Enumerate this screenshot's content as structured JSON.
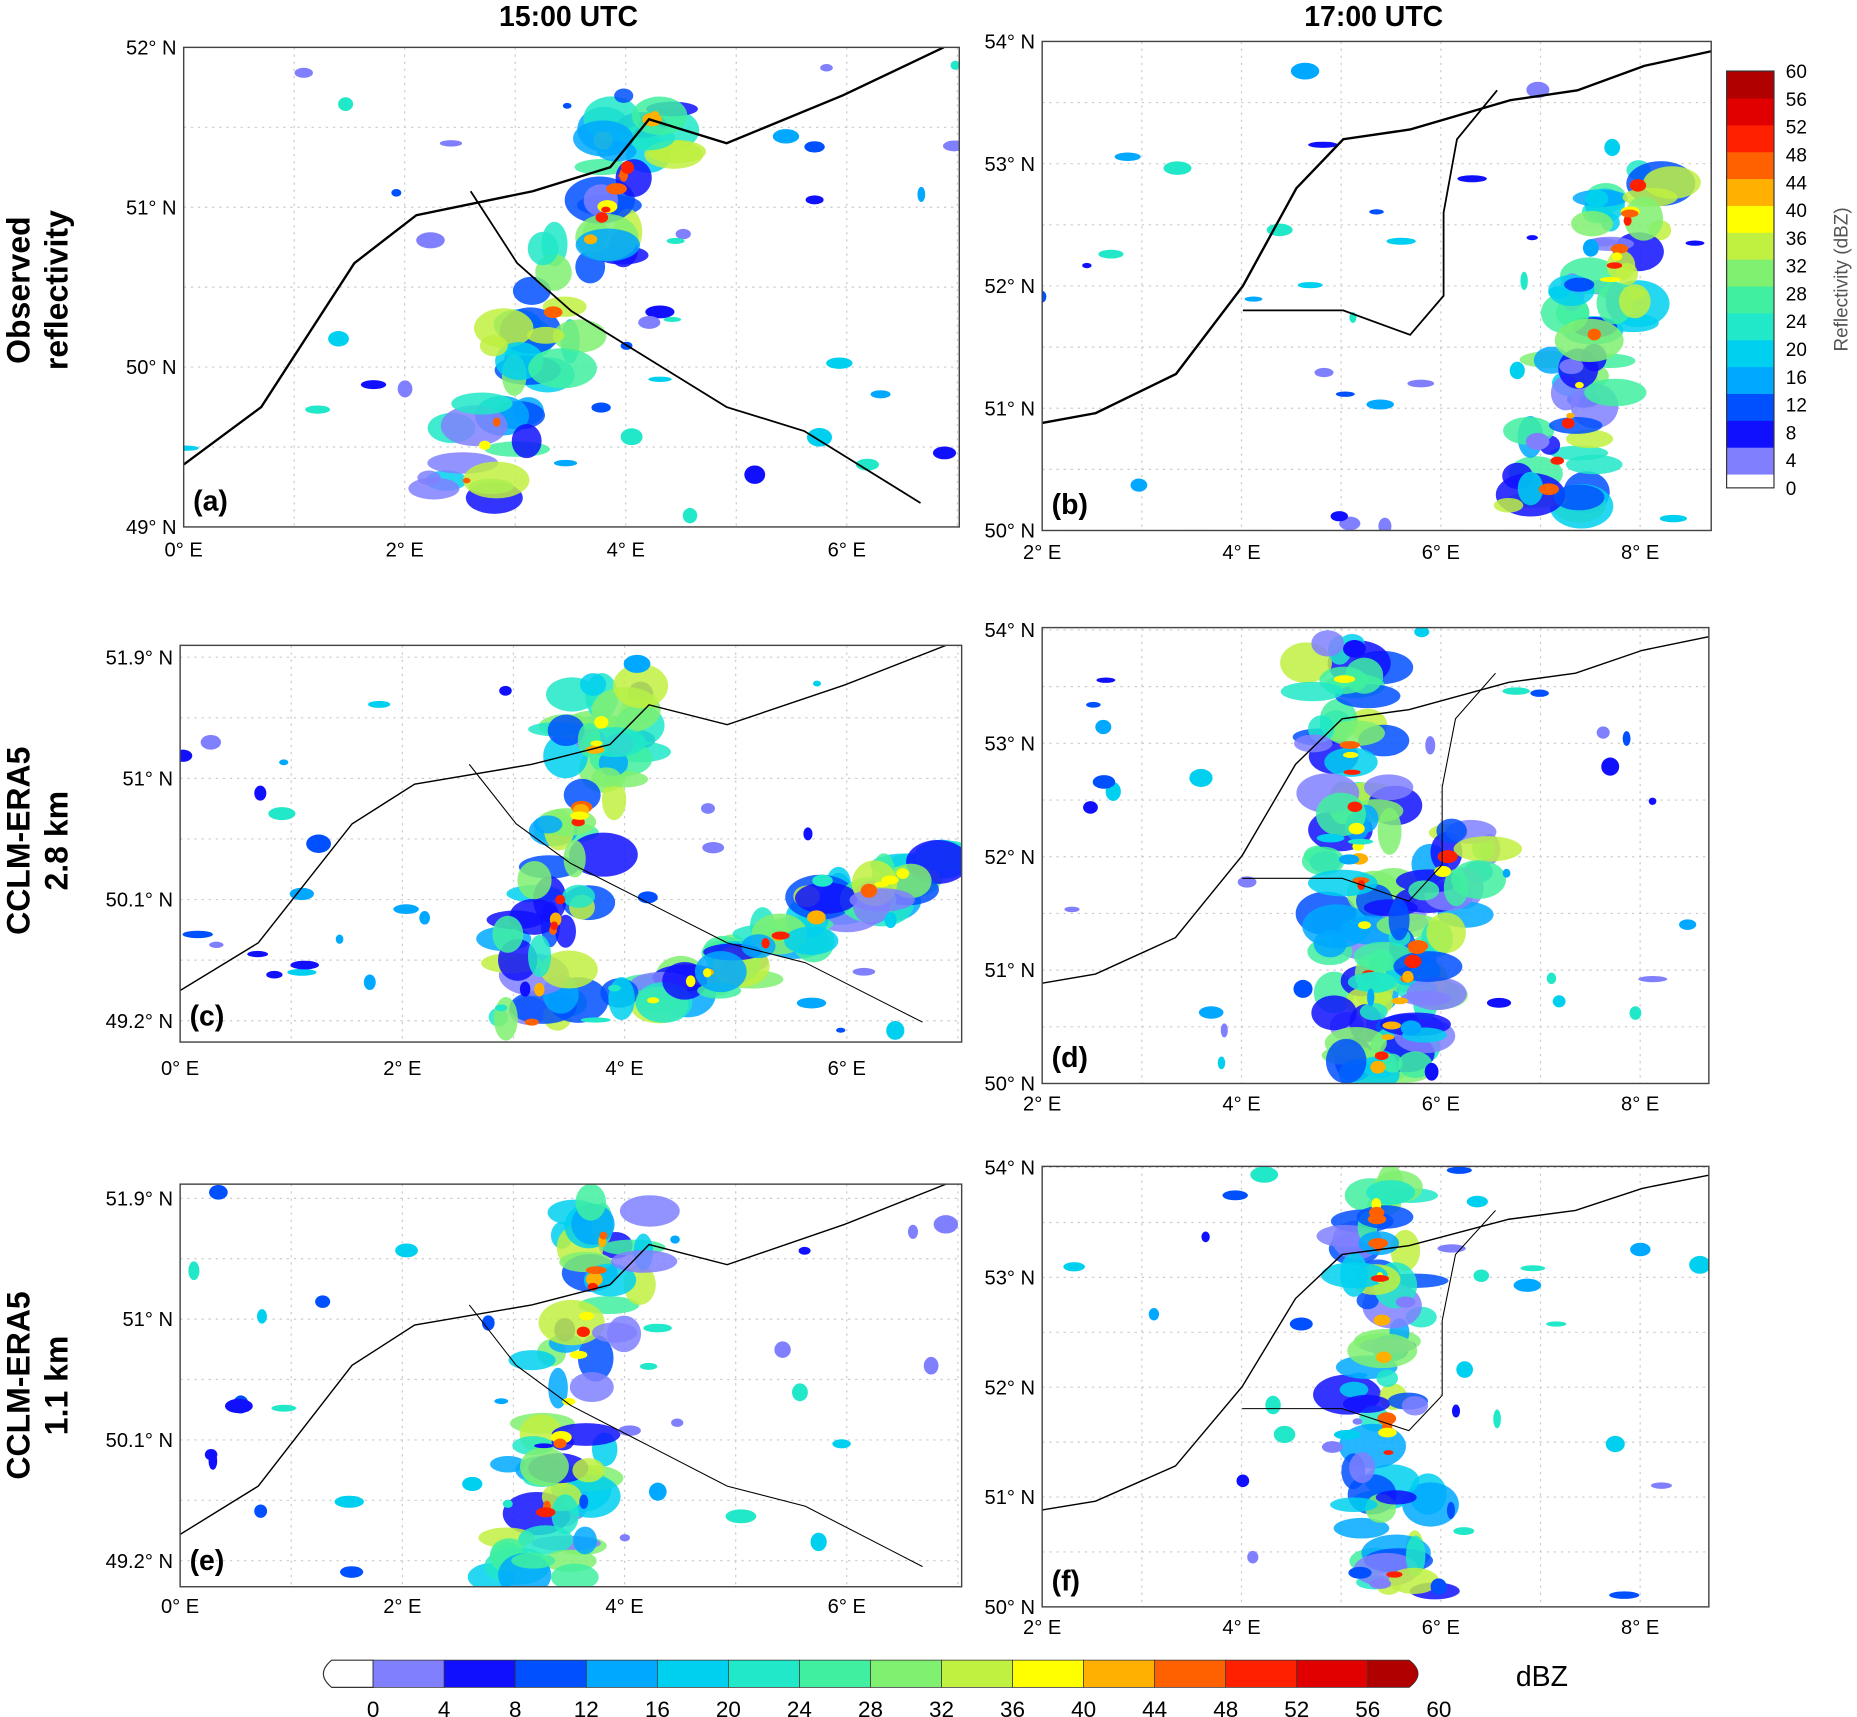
{
  "column_titles": [
    "15:00 UTC",
    "17:00 UTC"
  ],
  "row_labels": [
    [
      "Observed",
      "reflectivity"
    ],
    [
      "CCLM-ERA5",
      "2.8 km"
    ],
    [
      "CCLM-ERA5",
      "1.1 km"
    ]
  ],
  "panels": [
    {
      "label": "(a)",
      "lat_labels": [
        "52° N",
        "51° N",
        "50° N",
        "49° N"
      ],
      "lon_labels": [
        "0° E",
        "2° E",
        "4° E",
        "6° E"
      ]
    },
    {
      "label": "(b)",
      "lat_labels": [
        "54° N",
        "53° N",
        "52° N",
        "51° N",
        "50° N"
      ],
      "lon_labels": [
        "2° E",
        "4° E",
        "6° E",
        "8° E"
      ]
    },
    {
      "label": "(c)",
      "lat_labels": [
        "51.9° N",
        "51° N",
        "50.1° N",
        "49.2° N"
      ],
      "lon_labels": [
        "0° E",
        "2° E",
        "4° E",
        "6° E"
      ]
    },
    {
      "label": "(d)",
      "lat_labels": [
        "54° N",
        "53° N",
        "52° N",
        "51° N",
        "50° N"
      ],
      "lon_labels": [
        "2° E",
        "4° E",
        "6° E",
        "8° E"
      ]
    },
    {
      "label": "(e)",
      "lat_labels": [
        "51.9° N",
        "51° N",
        "50.1° N",
        "49.2° N"
      ],
      "lon_labels": [
        "0° E",
        "2° E",
        "4° E",
        "6° E"
      ]
    },
    {
      "label": "(f)",
      "lat_labels": [
        "54° N",
        "53° N",
        "52° N",
        "51° N",
        "50° N"
      ],
      "lon_labels": [
        "2° E",
        "4° E",
        "6° E",
        "8° E"
      ]
    }
  ],
  "colorbar": {
    "title": "Reflectivity (dBZ)",
    "ticks": [
      0,
      4,
      8,
      12,
      16,
      20,
      24,
      28,
      32,
      36,
      40,
      44,
      48,
      52,
      56,
      60
    ]
  },
  "bottom_colorbar": {
    "unit": "dBZ",
    "ticks": [
      0,
      4,
      8,
      12,
      16,
      20,
      24,
      28,
      32,
      36,
      40,
      44,
      48,
      52,
      56,
      60
    ]
  },
  "colors": [
    "#8080ff",
    "#1010ff",
    "#0050ff",
    "#00a8ff",
    "#00d0f0",
    "#20e8c8",
    "#40f0a0",
    "#80f070",
    "#c0f040",
    "#ffff00",
    "#ffb000",
    "#ff6000",
    "#ff2000",
    "#e00000",
    "#b00000"
  ]
}
